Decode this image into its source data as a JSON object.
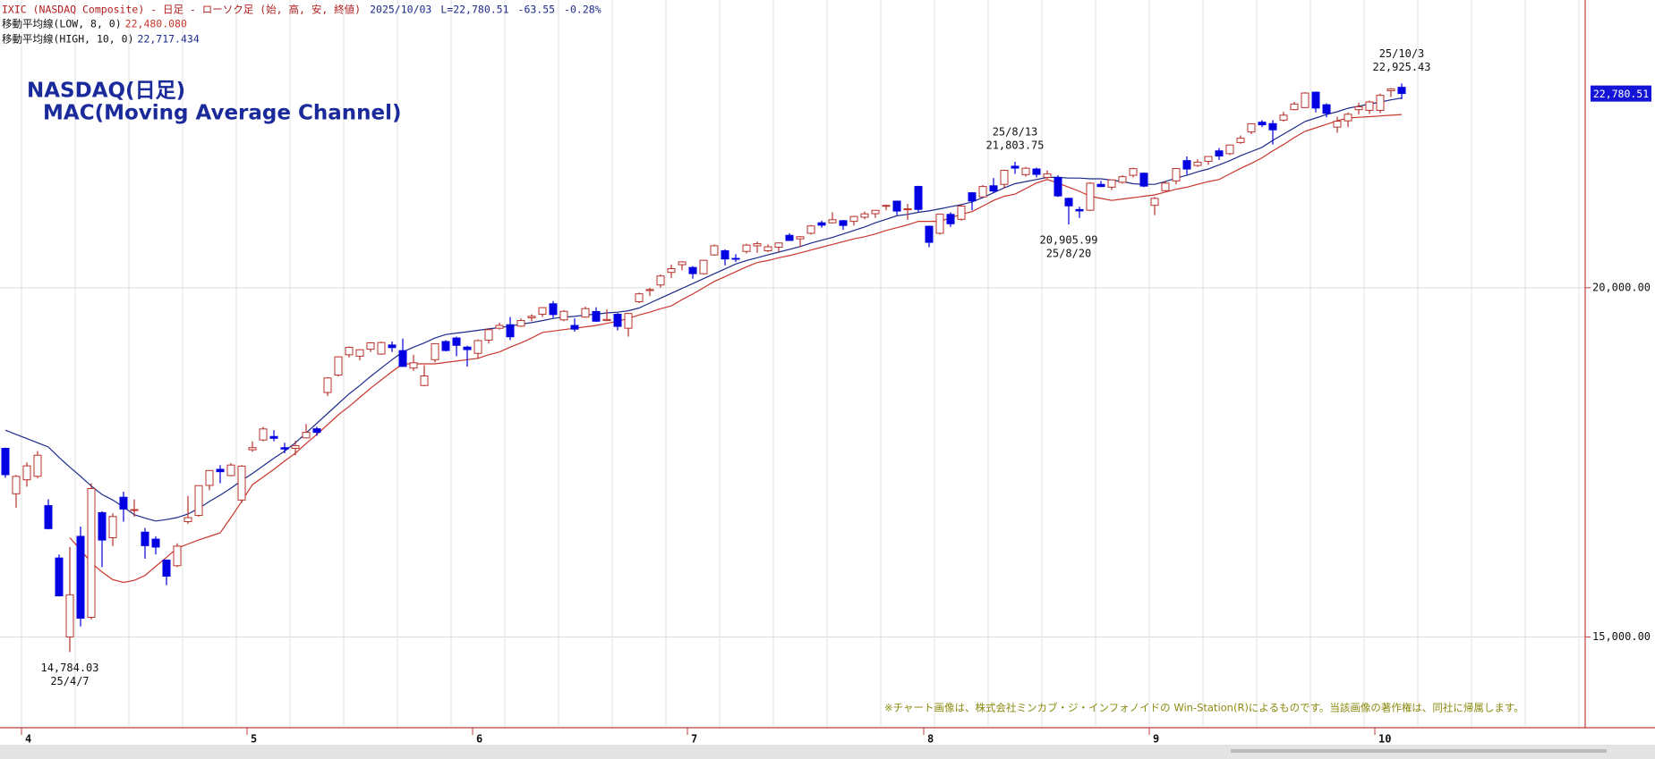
{
  "chart_data": {
    "type": "candlestick",
    "header": {
      "title": "IXIC (NASDAQ Composite) - 日足 - ローソク足 (始, 高, 安, 終値)",
      "date": "2025/10/03",
      "last": "L=22,780.51",
      "change": "-63.55",
      "change_pct": "-0.28%"
    },
    "title": "NASDAQ(日足)",
    "subtitle": "MAC(Moving Average Channel)",
    "footnote": "※チャート画像は、株式会社ミンカブ・ジ・インフォノイドの Win-Station(R)によるものです。当該画像の著作権は、同社に帰属します。",
    "categories": [
      null,
      null,
      "4",
      null,
      null,
      null,
      null,
      null,
      null,
      null,
      null,
      null,
      null,
      null,
      null,
      null,
      null,
      null,
      null,
      null,
      null,
      null,
      null,
      "5",
      null,
      null,
      null,
      null,
      null,
      null,
      null,
      null,
      null,
      null,
      null,
      null,
      null,
      null,
      null,
      null,
      null,
      null,
      null,
      null,
      "6",
      null,
      null,
      null,
      null,
      null,
      null,
      null,
      null,
      null,
      null,
      null,
      null,
      null,
      null,
      null,
      null,
      null,
      null,
      null,
      "7",
      null,
      null,
      null,
      null,
      null,
      null,
      null,
      null,
      null,
      null,
      null,
      null,
      null,
      null,
      null,
      null,
      null,
      null,
      null,
      null,
      null,
      "8",
      null,
      null,
      null,
      null,
      null,
      null,
      null,
      null,
      null,
      null,
      null,
      null,
      null,
      null,
      null,
      null,
      null,
      null,
      null,
      null,
      "9",
      null,
      null,
      null,
      null,
      null,
      null,
      null,
      null,
      null,
      null,
      null,
      null,
      null,
      null,
      null,
      null,
      null,
      null,
      null,
      null,
      "10",
      null,
      null
    ],
    "candles": {
      "up_color": "#b8322a",
      "down_color": "#0000e0",
      "open": [
        17700,
        17050,
        17250,
        17300,
        16880,
        16130,
        15000,
        16440,
        15280,
        16780,
        16420,
        17000,
        16820,
        16500,
        16400,
        16100,
        16020,
        16650,
        16740,
        17170,
        17400,
        17310,
        16960,
        17680,
        17820,
        17870,
        17710,
        17700,
        17850,
        17980,
        18500,
        18750,
        19040,
        19020,
        19120,
        19050,
        19180,
        19100,
        18850,
        18600,
        18970,
        19230,
        19280,
        19150,
        19060,
        19250,
        19420,
        19470,
        19450,
        19570,
        19620,
        19770,
        19540,
        19460,
        19580,
        19660,
        19530,
        19620,
        19420,
        19800,
        19960,
        20040,
        20220,
        20330,
        20290,
        20200,
        20470,
        20530,
        20420,
        20520,
        20600,
        20530,
        20580,
        20750,
        20700,
        20780,
        20930,
        20930,
        20960,
        20950,
        21010,
        21060,
        21170,
        21240,
        21130,
        21450,
        20880,
        20780,
        21050,
        20980,
        21360,
        21300,
        21460,
        21480,
        21740,
        21620,
        21700,
        21580,
        21580,
        21280,
        21120,
        21110,
        21480,
        21440,
        21510,
        21610,
        21640,
        21180,
        21390,
        21530,
        21820,
        21750,
        21810,
        21960,
        21920,
        22080,
        22230,
        22370,
        22350,
        22400,
        22550,
        22580,
        22800,
        22620,
        22300,
        22390,
        22550,
        22540,
        22540,
        22820,
        22870
      ],
      "high": [
        17710,
        17320,
        17500,
        17660,
        16970,
        16180,
        16290,
        16580,
        17200,
        16800,
        16770,
        17080,
        16970,
        16560,
        16440,
        16110,
        16340,
        17020,
        17170,
        17390,
        17460,
        17490,
        17460,
        17800,
        18010,
        17960,
        17780,
        17810,
        18050,
        18010,
        18720,
        19020,
        19160,
        19120,
        19220,
        19230,
        19230,
        19270,
        19040,
        18890,
        19200,
        19250,
        19300,
        19170,
        19260,
        19420,
        19500,
        19580,
        19560,
        19620,
        19720,
        19810,
        19680,
        19560,
        19730,
        19720,
        19690,
        19640,
        19640,
        19930,
        20000,
        20190,
        20330,
        20380,
        20310,
        20400,
        20620,
        20550,
        20480,
        20630,
        20660,
        20620,
        20650,
        20780,
        20740,
        20900,
        20960,
        21080,
        20970,
        21030,
        21090,
        21110,
        21190,
        21240,
        21200,
        21460,
        20890,
        21060,
        21080,
        21190,
        21370,
        21470,
        21570,
        21690,
        21803.75,
        21730,
        21720,
        21680,
        21610,
        21290,
        21160,
        21510,
        21530,
        21550,
        21610,
        21720,
        21650,
        21300,
        21530,
        21710,
        21880,
        21840,
        21880,
        22000,
        22050,
        22180,
        22350,
        22400,
        22400,
        22520,
        22660,
        22800,
        22810,
        22640,
        22450,
        22510,
        22650,
        22680,
        22780,
        22860,
        22925.43
      ],
      "low": [
        17280,
        16850,
        17150,
        17270,
        16540,
        15580,
        14784.03,
        15150,
        15250,
        16000,
        16300,
        16650,
        16720,
        16120,
        16180,
        15740,
        16000,
        16620,
        16720,
        17100,
        17200,
        17300,
        16920,
        17650,
        17800,
        17800,
        17630,
        17600,
        17840,
        17880,
        18450,
        18730,
        19000,
        18960,
        19080,
        19040,
        19080,
        18870,
        18810,
        18590,
        18930,
        19090,
        19020,
        18870,
        18980,
        19200,
        19400,
        19250,
        19440,
        19520,
        19580,
        19570,
        19520,
        19370,
        19570,
        19510,
        19520,
        19390,
        19300,
        19780,
        19880,
        20000,
        20140,
        20250,
        20130,
        20190,
        20460,
        20320,
        20370,
        20490,
        20500,
        20510,
        20510,
        20670,
        20580,
        20760,
        20860,
        20920,
        20830,
        20890,
        20980,
        21000,
        21110,
        21040,
        20970,
        21090,
        20580,
        20760,
        20870,
        20960,
        21110,
        21300,
        21360,
        21420,
        21630,
        21590,
        21580,
        21560,
        21300,
        20905.99,
        21000,
        21100,
        21440,
        21400,
        21490,
        21580,
        21440,
        21040,
        21380,
        21480,
        21620,
        21730,
        21760,
        21830,
        21900,
        22060,
        22200,
        22300,
        22050,
        22380,
        22540,
        22570,
        22510,
        22440,
        22220,
        22300,
        22480,
        22490,
        22500,
        22730,
        22700
      ],
      "close": [
        17323,
        17299,
        17449,
        17601,
        16551,
        15588,
        15603,
        15268,
        17125,
        16387,
        16724,
        16831,
        16823,
        16307,
        16287,
        15870,
        16300,
        16708,
        17166,
        17383,
        17366,
        17461,
        17446,
        17710,
        17978,
        17844,
        17690,
        17738,
        17929,
        17929,
        18708,
        19010,
        19147,
        19112,
        19211,
        19215,
        19143,
        18873,
        18925,
        18737,
        19199,
        19101,
        19175,
        19114,
        19243,
        19399,
        19461,
        19298,
        19530,
        19591,
        19715,
        19616,
        19662,
        19407,
        19701,
        19521,
        19546,
        19447,
        19631,
        19913,
        19974,
        20168,
        20273,
        20370,
        20202,
        20393,
        20601,
        20412,
        20418,
        20611,
        20630,
        20586,
        20641,
        20677,
        20730,
        20885,
        20896,
        20974,
        20892,
        21020,
        21058,
        21108,
        21179,
        21098,
        21130,
        21122,
        20650,
        21053,
        20916,
        21169,
        21243,
        21450,
        21385,
        21681,
        21713,
        21711,
        21623,
        21629,
        21315,
        21172,
        21100,
        21497,
        21449,
        21544,
        21590,
        21705,
        21455,
        21279,
        21498,
        21707,
        21700,
        21798,
        21879,
        21886,
        22043,
        22141,
        22348,
        22333,
        22261,
        22471,
        22631,
        22788,
        22573,
        22497,
        22384,
        22484,
        22591,
        22660,
        22755,
        22845,
        22781
      ]
    },
    "series": [
      {
        "name": "移動平均線(LOW, 8, 0)",
        "color": "#c8362c",
        "last_label": "22,480.080",
        "values": [
          null,
          null,
          null,
          null,
          null,
          null,
          16420,
          16250,
          16060,
          15930,
          15820,
          15780,
          15810,
          15880,
          16010,
          16140,
          16270,
          16330,
          16390,
          16440,
          16490,
          16710,
          16940,
          17180,
          17290,
          17400,
          17520,
          17630,
          17770,
          17900,
          18040,
          18180,
          18300,
          18430,
          18560,
          18680,
          18800,
          18910,
          18910,
          18910,
          18910,
          18930,
          18950,
          18970,
          18990,
          19040,
          19080,
          19150,
          19210,
          19280,
          19360,
          19380,
          19400,
          19420,
          19440,
          19460,
          19490,
          19520,
          19560,
          19610,
          19650,
          19700,
          19740,
          19830,
          19910,
          20000,
          20090,
          20160,
          20230,
          20300,
          20360,
          20390,
          20430,
          20460,
          20500,
          20540,
          20580,
          20620,
          20660,
          20700,
          20730,
          20770,
          20820,
          20860,
          20900,
          20950,
          20950,
          20950,
          21000,
          21050,
          21090,
          21170,
          21250,
          21310,
          21340,
          21420,
          21500,
          21550,
          21500,
          21440,
          21380,
          21310,
          21280,
          21250,
          21270,
          21290,
          21310,
          21330,
          21370,
          21410,
          21440,
          21480,
          21520,
          21550,
          21630,
          21710,
          21780,
          21860,
          21960,
          22050,
          22150,
          22240,
          22290,
          22340,
          22390,
          22430,
          22440,
          22450,
          22460,
          22470,
          22480.08
        ]
      },
      {
        "name": "移動平均線(HIGH, 10, 0)",
        "color": "#1c2a8a",
        "last_label": "22,717.434",
        "values": [
          17960,
          17900,
          17840,
          17780,
          17720,
          17570,
          17430,
          17300,
          17160,
          17040,
          16960,
          16860,
          16750,
          16700,
          16660,
          16680,
          16710,
          16760,
          16840,
          16940,
          17030,
          17130,
          17240,
          17340,
          17450,
          17560,
          17660,
          17780,
          17920,
          18060,
          18200,
          18340,
          18480,
          18600,
          18730,
          18850,
          18970,
          19080,
          19150,
          19210,
          19280,
          19330,
          19350,
          19370,
          19390,
          19410,
          19430,
          19450,
          19480,
          19500,
          19530,
          19560,
          19580,
          19590,
          19610,
          19620,
          19640,
          19650,
          19670,
          19710,
          19780,
          19850,
          19920,
          19990,
          20060,
          20130,
          20200,
          20270,
          20340,
          20390,
          20430,
          20470,
          20510,
          20550,
          20590,
          20640,
          20680,
          20720,
          20770,
          20820,
          20870,
          20930,
          20980,
          21030,
          21050,
          21080,
          21100,
          21130,
          21160,
          21190,
          21230,
          21290,
          21360,
          21430,
          21490,
          21520,
          21550,
          21580,
          21580,
          21570,
          21570,
          21560,
          21560,
          21540,
          21520,
          21490,
          21480,
          21480,
          21520,
          21570,
          21610,
          21660,
          21700,
          21760,
          21820,
          21890,
          21950,
          22010,
          22110,
          22200,
          22290,
          22380,
          22430,
          22480,
          22520,
          22570,
          22600,
          22630,
          22660,
          22690,
          22717.434
        ]
      }
    ],
    "annotations": [
      {
        "date": "25/10/3",
        "value": 22925.43,
        "label": "22,925.43"
      },
      {
        "date": "25/8/13",
        "value": 21803.75,
        "label": "21,803.75"
      },
      {
        "date": "25/8/20",
        "value": 20905.99,
        "label": "20,905.99"
      },
      {
        "date": "25/4/7",
        "value": 14784.03,
        "label": "14,784.03"
      }
    ],
    "last_price": {
      "value": 22780.51,
      "label": "22,780.51"
    },
    "ylim": [
      13700,
      24120
    ],
    "yticks": [
      {
        "value": 15000,
        "label": "15,000.00"
      },
      {
        "value": 20000,
        "label": "20,000.00"
      }
    ],
    "grid": true
  }
}
